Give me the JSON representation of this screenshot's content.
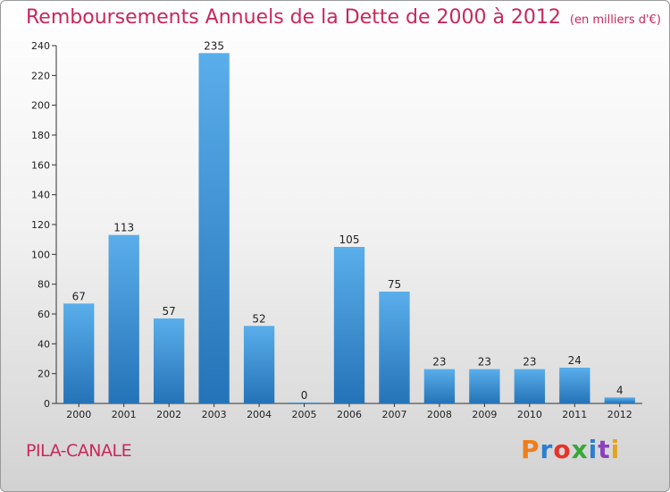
{
  "chart_data": {
    "type": "bar",
    "title": "Remboursements Annuels de la Dette de 2000 à 2012",
    "subtitle": "(en milliers d'€)",
    "categories": [
      "2000",
      "2001",
      "2002",
      "2003",
      "2004",
      "2005",
      "2006",
      "2007",
      "2008",
      "2009",
      "2010",
      "2011",
      "2012"
    ],
    "values": [
      67,
      113,
      57,
      235,
      52,
      0,
      105,
      75,
      23,
      23,
      23,
      24,
      4
    ],
    "ylim": [
      0,
      240
    ],
    "yticks": [
      0,
      20,
      40,
      60,
      80,
      100,
      120,
      140,
      160,
      180,
      200,
      220,
      240
    ],
    "grid": false,
    "bar_color": "#3d8fd6"
  },
  "footer": {
    "commune": "PILA-CANALE",
    "logo_text": "Proxiti",
    "logo_colors": [
      "#ef7d1a",
      "#2a7fd4",
      "#e8312a",
      "#3aa63a",
      "#2a7fd4",
      "#8c3fbf",
      "#e8a21a"
    ]
  }
}
